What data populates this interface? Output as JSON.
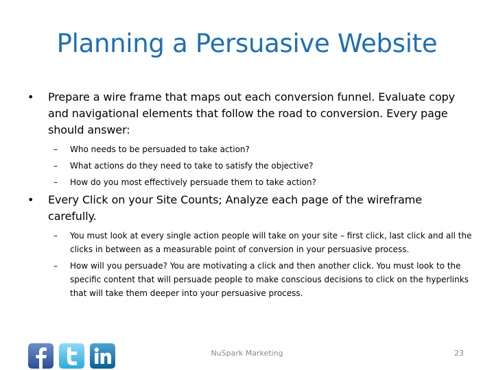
{
  "slide": {
    "title": "Planning a Persuasive Website",
    "footer": "NuSpark Marketing",
    "page_number": "23"
  },
  "bullets": [
    {
      "text": "Prepare a wire frame that maps out each conversion funnel.  Evaluate copy and navigational elements that follow the road to conversion.  Every page should answer:",
      "subitems": [
        "Who needs to be persuaded to take action?",
        "What actions do they need to take to satisfy the objective?",
        "How do you most effectively persuade them to take action?"
      ]
    },
    {
      "text": "Every Click on your Site Counts; Analyze each page of the wireframe carefully.",
      "subitems": [
        "You must look at every single action people will take on your site – first click, last click and all the clicks in between as a measurable point of conversion in your persuasive process.",
        "How will you persuade? You are motivating a click and then another click. You must look to the specific content that will persuade people to make conscious decisions to click on the hyperlinks that will take them deeper into your persuasive process."
      ]
    }
  ],
  "icons": {
    "facebook": "facebook-icon",
    "twitter": "twitter-icon",
    "linkedin": "linkedin-icon",
    "facebook_color": "#3b5998",
    "twitter_color": "#4ec2f0",
    "linkedin_color": "#0e76a8"
  }
}
